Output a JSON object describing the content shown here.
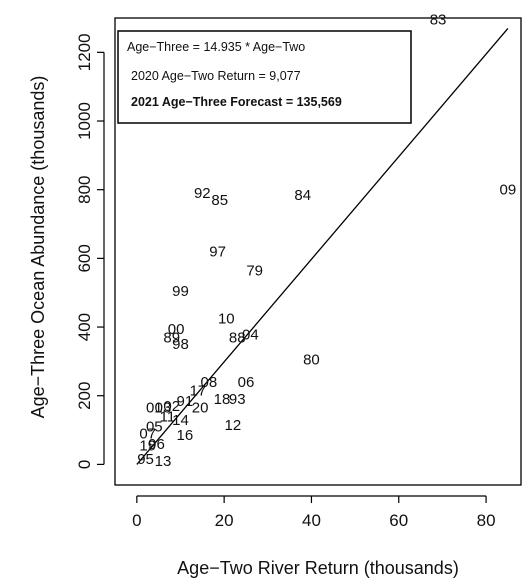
{
  "chart_data": {
    "type": "scatter",
    "xlabel": "Age−Two River Return (thousands)",
    "ylabel": "Age−Three Ocean Abundance (thousands)",
    "xlim": [
      -5,
      88
    ],
    "ylim": [
      -60,
      1300
    ],
    "xticks": [
      0,
      20,
      40,
      60,
      80
    ],
    "yticks": [
      0,
      200,
      400,
      600,
      800,
      1000,
      1200
    ],
    "grid": false,
    "legend_position": "top-left",
    "annotations": [
      "Age−Three = 14.935 * Age−Two",
      "2020 Age−Two Return = 9,077",
      "2021 Age−Three Forecast = 135,569"
    ],
    "fit_line": {
      "slope": 14.935,
      "intercept": 0,
      "x_range": [
        0,
        85
      ]
    },
    "points": [
      {
        "label": "83",
        "x": 69,
        "y": 1295
      },
      {
        "label": "09",
        "x": 85,
        "y": 800
      },
      {
        "label": "84",
        "x": 38,
        "y": 785
      },
      {
        "label": "92",
        "x": 15,
        "y": 790
      },
      {
        "label": "85",
        "x": 19,
        "y": 770
      },
      {
        "label": "97",
        "x": 18.5,
        "y": 620
      },
      {
        "label": "79",
        "x": 27,
        "y": 565
      },
      {
        "label": "99",
        "x": 10,
        "y": 505
      },
      {
        "label": "10",
        "x": 20.5,
        "y": 425
      },
      {
        "label": "00",
        "x": 9,
        "y": 395
      },
      {
        "label": "89",
        "x": 8,
        "y": 370
      },
      {
        "label": "98",
        "x": 10,
        "y": 350
      },
      {
        "label": "88",
        "x": 23,
        "y": 370
      },
      {
        "label": "04",
        "x": 26,
        "y": 378
      },
      {
        "label": "80",
        "x": 40,
        "y": 305
      },
      {
        "label": "08",
        "x": 16.5,
        "y": 240
      },
      {
        "label": "06",
        "x": 25,
        "y": 240
      },
      {
        "label": "18",
        "x": 19.5,
        "y": 190
      },
      {
        "label": "93",
        "x": 23,
        "y": 190
      },
      {
        "label": "12",
        "x": 22,
        "y": 115
      },
      {
        "label": "16",
        "x": 11,
        "y": 85
      },
      {
        "label": "01",
        "x": 4,
        "y": 165
      },
      {
        "label": "03",
        "x": 6,
        "y": 165
      },
      {
        "label": "02",
        "x": 8,
        "y": 170
      },
      {
        "label": "91",
        "x": 11,
        "y": 185
      },
      {
        "label": "17",
        "x": 14,
        "y": 215
      },
      {
        "label": "20",
        "x": 14.5,
        "y": 165
      },
      {
        "label": "14",
        "x": 10,
        "y": 130
      },
      {
        "label": "11",
        "x": 7,
        "y": 140
      },
      {
        "label": "05",
        "x": 4,
        "y": 110
      },
      {
        "label": "07",
        "x": 2.5,
        "y": 90
      },
      {
        "label": "96",
        "x": 4.5,
        "y": 60
      },
      {
        "label": "19",
        "x": 2.5,
        "y": 55
      },
      {
        "label": "95",
        "x": 2,
        "y": 15
      },
      {
        "label": "13",
        "x": 6,
        "y": 10
      }
    ]
  }
}
